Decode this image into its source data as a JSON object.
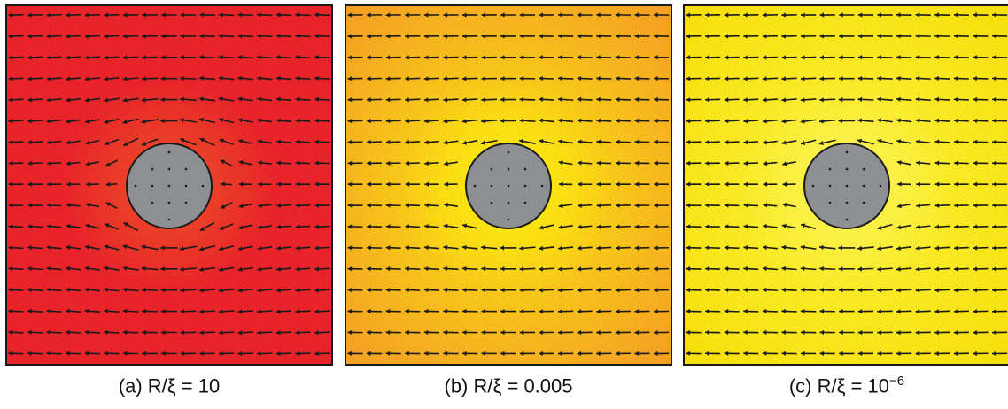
{
  "panels": [
    {
      "caption_prefix": "(a) R/ξ = ",
      "caption_value": "10",
      "caption_exp": "",
      "field_color_outer": "#e8232a",
      "field_color_inner": "#e8232a",
      "halo_color": "#f5e11a",
      "halo_strength": 0.15,
      "flow_strength": 1.0
    },
    {
      "caption_prefix": "(b) R/ξ = ",
      "caption_value": "0.005",
      "caption_exp": "",
      "field_color_outer": "#f4a024",
      "field_color_inner": "#fbe810",
      "halo_color": "#fbe810",
      "halo_strength": 0.6,
      "flow_strength": 0.4
    },
    {
      "caption_prefix": "(c) R/ξ = ",
      "caption_value": "10",
      "caption_exp": "−6",
      "field_color_outer": "#f7df0c",
      "field_color_inner": "#fbf23a",
      "halo_color": "#fcf36a",
      "halo_strength": 0.4,
      "flow_strength": 0.5
    }
  ],
  "colors": {
    "obstacle_fill": "#8e8f92",
    "obstacle_stroke": "#1a1a1a",
    "arrow": "#1a1a1a",
    "frame": "#1a1a1a"
  }
}
